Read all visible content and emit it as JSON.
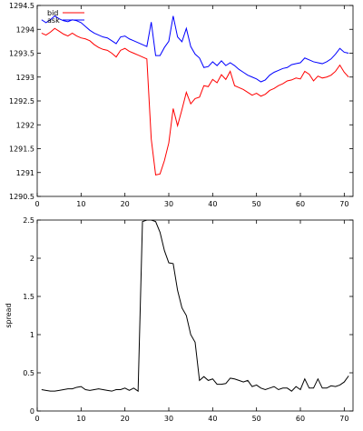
{
  "chart_data": [
    {
      "type": "line",
      "title": "",
      "xlabel": "",
      "ylabel": "",
      "xlim": [
        0,
        72
      ],
      "ylim": [
        1290.5,
        1294.5
      ],
      "xticks": [
        0,
        10,
        20,
        30,
        40,
        50,
        60,
        70
      ],
      "yticks": [
        1290.5,
        1291,
        1291.5,
        1292,
        1292.5,
        1293,
        1293.5,
        1294,
        1294.5
      ],
      "ytick_labels": [
        "1290.5",
        "1291",
        "1291.5",
        "1292",
        "1292.5",
        "1293",
        "1293.5",
        "1294",
        "1294.5"
      ],
      "grid": false,
      "legend": "top-left",
      "series": [
        {
          "name": "bid",
          "color": "#ff0000",
          "x": [
            1,
            2,
            3,
            4,
            5,
            6,
            7,
            8,
            9,
            10,
            11,
            12,
            13,
            14,
            15,
            16,
            17,
            18,
            19,
            20,
            21,
            22,
            23,
            24,
            25,
            26,
            27,
            28,
            29,
            30,
            31,
            32,
            33,
            34,
            35,
            36,
            37,
            38,
            39,
            40,
            41,
            42,
            43,
            44,
            45,
            46,
            47,
            48,
            49,
            50,
            51,
            52,
            53,
            54,
            55,
            56,
            57,
            58,
            59,
            60,
            61,
            62,
            63,
            64,
            65,
            66,
            67,
            68,
            69,
            70,
            71
          ],
          "values": [
            1293.92,
            1293.88,
            1293.94,
            1294.02,
            1293.96,
            1293.9,
            1293.86,
            1293.92,
            1293.86,
            1293.82,
            1293.8,
            1293.76,
            1293.68,
            1293.62,
            1293.58,
            1293.56,
            1293.5,
            1293.42,
            1293.56,
            1293.6,
            1293.54,
            1293.5,
            1293.46,
            1293.42,
            1293.38,
            1291.7,
            1290.95,
            1290.97,
            1291.25,
            1291.62,
            1292.34,
            1291.98,
            1292.32,
            1292.68,
            1292.44,
            1292.55,
            1292.58,
            1292.82,
            1292.8,
            1292.95,
            1292.88,
            1293.05,
            1292.95,
            1293.12,
            1292.82,
            1292.78,
            1292.74,
            1292.68,
            1292.62,
            1292.66,
            1292.6,
            1292.64,
            1292.72,
            1292.76,
            1292.82,
            1292.86,
            1292.92,
            1292.94,
            1292.98,
            1292.96,
            1293.12,
            1293.06,
            1292.92,
            1293.02,
            1292.98,
            1293.0,
            1293.04,
            1293.12,
            1293.25,
            1293.1,
            1293.0
          ]
        },
        {
          "name": "ask",
          "color": "#0000ff",
          "x": [
            1,
            2,
            3,
            4,
            5,
            6,
            7,
            8,
            9,
            10,
            11,
            12,
            13,
            14,
            15,
            16,
            17,
            18,
            19,
            20,
            21,
            22,
            23,
            24,
            25,
            26,
            27,
            28,
            29,
            30,
            31,
            32,
            33,
            34,
            35,
            36,
            37,
            38,
            39,
            40,
            41,
            42,
            43,
            44,
            45,
            46,
            47,
            48,
            49,
            50,
            51,
            52,
            53,
            54,
            55,
            56,
            57,
            58,
            59,
            60,
            61,
            62,
            63,
            64,
            65,
            66,
            67,
            68,
            69,
            70,
            71
          ],
          "values": [
            1294.2,
            1294.14,
            1294.2,
            1294.28,
            1294.22,
            1294.18,
            1294.16,
            1294.2,
            1294.18,
            1294.14,
            1294.06,
            1293.98,
            1293.92,
            1293.88,
            1293.84,
            1293.82,
            1293.76,
            1293.7,
            1293.84,
            1293.86,
            1293.8,
            1293.76,
            1293.72,
            1293.68,
            1293.64,
            1294.15,
            1293.45,
            1293.45,
            1293.62,
            1293.75,
            1294.28,
            1293.84,
            1293.74,
            1294.02,
            1293.64,
            1293.48,
            1293.4,
            1293.2,
            1293.22,
            1293.32,
            1293.24,
            1293.34,
            1293.24,
            1293.3,
            1293.24,
            1293.16,
            1293.1,
            1293.04,
            1293.0,
            1292.96,
            1292.9,
            1292.94,
            1293.04,
            1293.1,
            1293.14,
            1293.18,
            1293.2,
            1293.26,
            1293.28,
            1293.3,
            1293.4,
            1293.36,
            1293.32,
            1293.3,
            1293.28,
            1293.32,
            1293.38,
            1293.48,
            1293.6,
            1293.52,
            1293.5
          ]
        }
      ]
    },
    {
      "type": "line",
      "title": "",
      "xlabel": "",
      "ylabel": "spread",
      "xlim": [
        0,
        72
      ],
      "ylim": [
        0,
        2.5
      ],
      "xticks": [
        0,
        10,
        20,
        30,
        40,
        50,
        60,
        70
      ],
      "yticks": [
        0,
        0.5,
        1,
        1.5,
        2,
        2.5
      ],
      "ytick_labels": [
        "0",
        "0.5",
        "1",
        "1.5",
        "2",
        "2.5"
      ],
      "grid": false,
      "series": [
        {
          "color": "#000000",
          "x": [
            1,
            2,
            3,
            4,
            5,
            6,
            7,
            8,
            9,
            10,
            11,
            12,
            13,
            14,
            15,
            16,
            17,
            18,
            19,
            20,
            21,
            22,
            23,
            24,
            25,
            26,
            27,
            28,
            29,
            30,
            31,
            32,
            33,
            34,
            35,
            36,
            37,
            38,
            39,
            40,
            41,
            42,
            43,
            44,
            45,
            46,
            47,
            48,
            49,
            50,
            51,
            52,
            53,
            54,
            55,
            56,
            57,
            58,
            59,
            60,
            61,
            62,
            63,
            64,
            65,
            66,
            67,
            68,
            69,
            70,
            71
          ],
          "values": [
            0.28,
            0.27,
            0.26,
            0.26,
            0.27,
            0.28,
            0.29,
            0.29,
            0.31,
            0.32,
            0.28,
            0.27,
            0.28,
            0.29,
            0.28,
            0.27,
            0.26,
            0.28,
            0.28,
            0.3,
            0.27,
            0.3,
            0.26,
            2.48,
            2.5,
            2.5,
            2.48,
            2.34,
            2.1,
            1.94,
            1.93,
            1.58,
            1.35,
            1.25,
            1.0,
            0.9,
            0.4,
            0.45,
            0.4,
            0.42,
            0.35,
            0.35,
            0.36,
            0.43,
            0.42,
            0.4,
            0.38,
            0.4,
            0.32,
            0.34,
            0.3,
            0.28,
            0.3,
            0.32,
            0.28,
            0.3,
            0.3,
            0.26,
            0.32,
            0.28,
            0.42,
            0.3,
            0.3,
            0.42,
            0.3,
            0.3,
            0.33,
            0.32,
            0.34,
            0.38,
            0.46
          ]
        }
      ]
    }
  ]
}
